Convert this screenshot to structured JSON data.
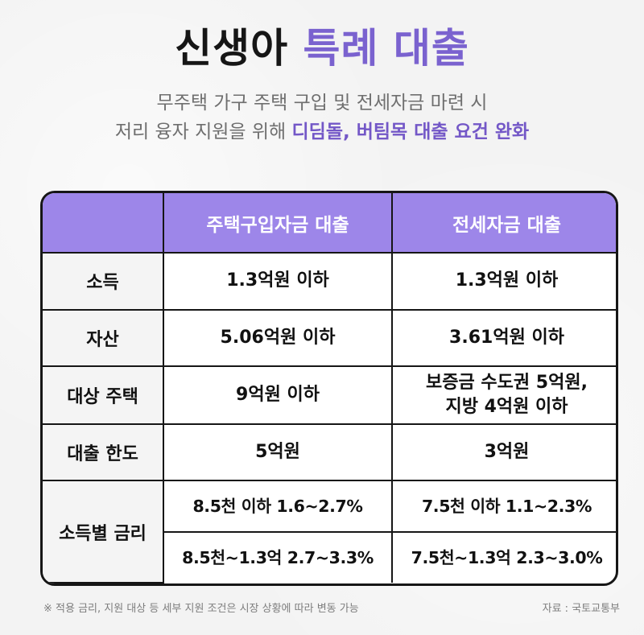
{
  "header": {
    "title_part1": "신생아",
    "title_part2": "특례 대출",
    "subtitle_line1": "무주택 가구 주택 구입 및 전세자금 마련 시",
    "subtitle_line2_plain": "저리 융자 지원을 위해 ",
    "subtitle_line2_accent": "디딤돌, 버팀목 대출 요건 완화"
  },
  "table": {
    "columns": [
      "",
      "주택구입자금 대출",
      "전세자금 대출"
    ],
    "rows": [
      {
        "label": "소득",
        "purchase": "1.3억원 이하",
        "jeonse": "1.3억원 이하"
      },
      {
        "label": "자산",
        "purchase": "5.06억원 이하",
        "jeonse": "3.61억원 이하"
      },
      {
        "label": "대상 주택",
        "purchase": "9억원 이하",
        "jeonse_line1": "보증금 수도권 5억원,",
        "jeonse_line2": "지방 4억원 이하"
      },
      {
        "label": "대출 한도",
        "purchase": "5억원",
        "jeonse": "3억원"
      }
    ],
    "rate": {
      "label": "소득별 금리",
      "purchase_tier1": "8.5천 이하 1.6~2.7%",
      "purchase_tier2": "8.5천~1.3억 2.7~3.3%",
      "jeonse_tier1": "7.5천 이하 1.1~2.3%",
      "jeonse_tier2": "7.5천~1.3억 2.3~3.0%"
    }
  },
  "footer": {
    "note": "※ 적용 금리, 지원 대상 등 세부 지원 조건은 시장 상황에 따라 변동 가능",
    "source": "자료 : 국토교통부"
  },
  "colors": {
    "accent": "#7a62cf",
    "header_bg": "#9d86e9",
    "border": "#161616"
  }
}
